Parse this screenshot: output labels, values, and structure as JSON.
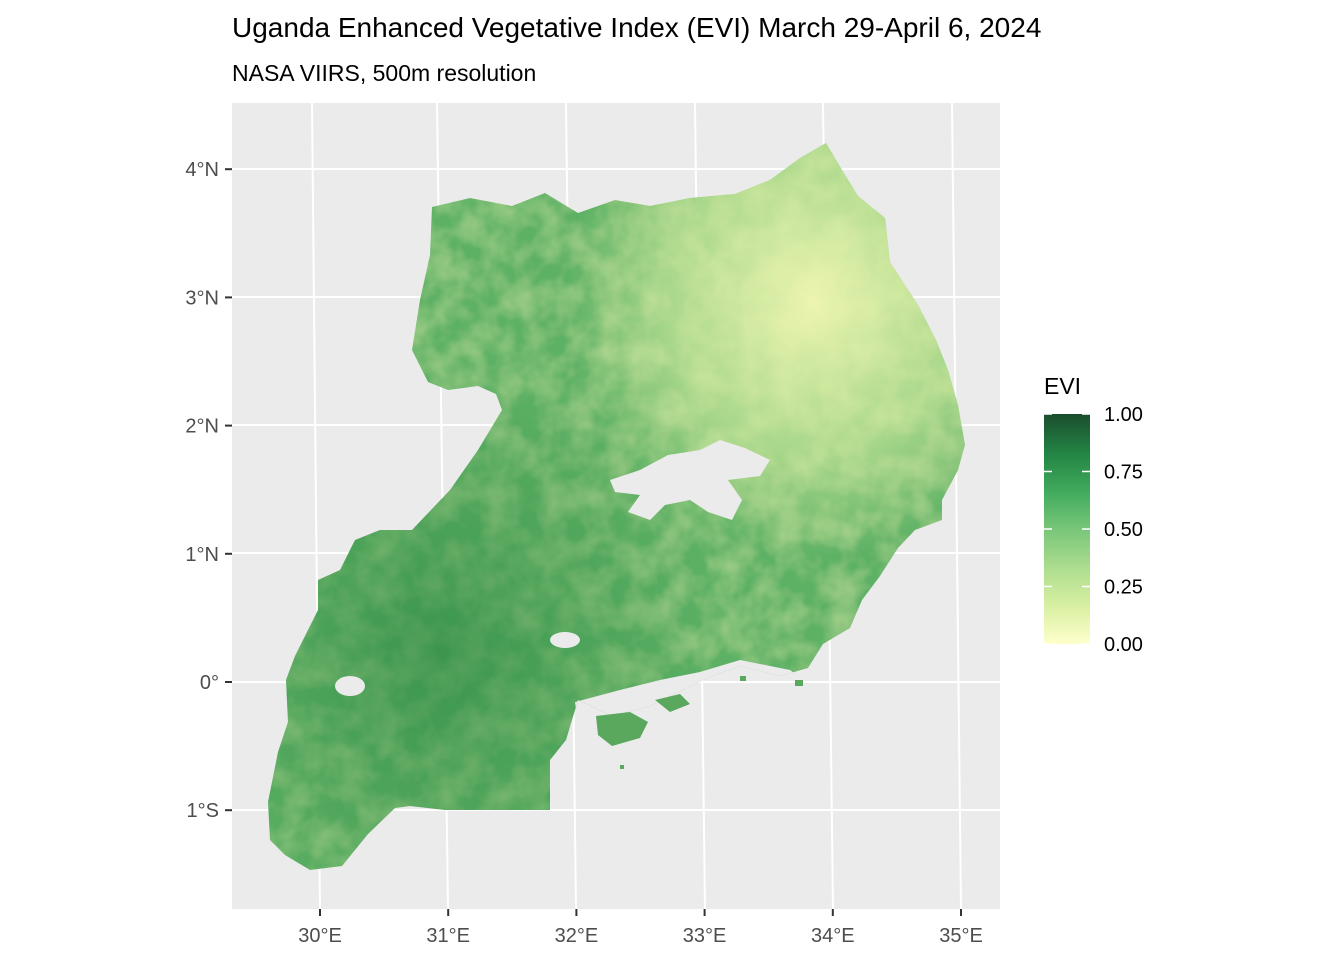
{
  "title": "Uganda Enhanced Vegetative Index (EVI) March 29-April 6, 2024",
  "subtitle": "NASA VIIRS, 500m resolution",
  "axes": {
    "x_ticks": [
      {
        "value": 30,
        "label": "30°E"
      },
      {
        "value": 31,
        "label": "31°E"
      },
      {
        "value": 32,
        "label": "32°E"
      },
      {
        "value": 33,
        "label": "33°E"
      },
      {
        "value": 34,
        "label": "34°E"
      },
      {
        "value": 35,
        "label": "35°E"
      }
    ],
    "y_ticks": [
      {
        "value": 4,
        "label": "4°N"
      },
      {
        "value": 3,
        "label": "3°N"
      },
      {
        "value": 2,
        "label": "2°N"
      },
      {
        "value": 1,
        "label": "1°N"
      },
      {
        "value": 0,
        "label": "0°"
      },
      {
        "value": -1,
        "label": "1°S"
      }
    ],
    "xlim": [
      29.3,
      35.3
    ],
    "ylim": [
      -1.75,
      4.5
    ]
  },
  "legend": {
    "title": "EVI",
    "placement": "right",
    "range": [
      0,
      1
    ],
    "breaks": [
      {
        "value": 1.0,
        "label": "1.00"
      },
      {
        "value": 0.75,
        "label": "0.75"
      },
      {
        "value": 0.5,
        "label": "0.50"
      },
      {
        "value": 0.25,
        "label": "0.25"
      },
      {
        "value": 0.0,
        "label": "0.00"
      }
    ],
    "colors": [
      "#ffffcc",
      "#d9f0a3",
      "#addd8e",
      "#78c679",
      "#41ab5d",
      "#238443",
      "#1b4d2e"
    ]
  },
  "colors": {
    "panel_background": "#ebebeb",
    "grid": "#ffffff",
    "water": "#ebebeb"
  }
}
